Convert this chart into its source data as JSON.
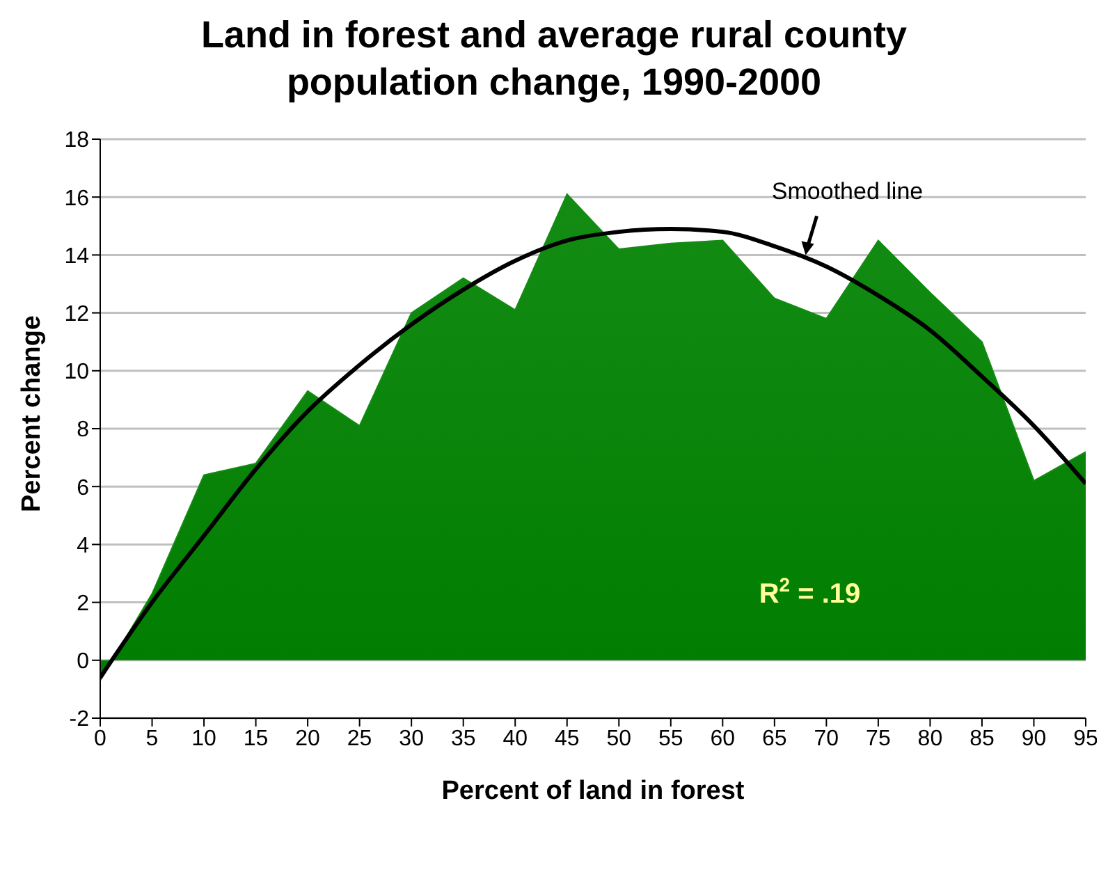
{
  "chart_data": {
    "type": "area",
    "title": "Land in forest and average rural county population change, 1990-2000",
    "xlabel": "Percent of land in forest",
    "ylabel": "Percent change",
    "x": [
      0,
      5,
      10,
      15,
      20,
      25,
      30,
      35,
      40,
      45,
      50,
      55,
      60,
      65,
      70,
      75,
      80,
      85,
      90,
      95
    ],
    "series": [
      {
        "color": "#148c14",
        "values": [
          -0.7,
          2.3,
          6.4,
          6.8,
          9.3,
          8.1,
          12.0,
          13.2,
          12.1,
          16.1,
          14.2,
          14.4,
          14.5,
          12.5,
          11.8,
          14.5,
          12.7,
          11.0,
          6.2,
          7.2
        ]
      },
      {
        "type": "line",
        "color": "#000000",
        "values": [
          -0.6,
          2.0,
          4.3,
          6.6,
          8.6,
          10.2,
          11.6,
          12.8,
          13.8,
          14.5,
          14.8,
          14.9,
          14.8,
          14.3,
          13.6,
          12.6,
          11.4,
          9.8,
          8.1,
          6.1
        ]
      }
    ],
    "xlim": [
      0,
      95
    ],
    "xticks": [
      0,
      5,
      10,
      15,
      20,
      25,
      30,
      35,
      40,
      45,
      50,
      55,
      60,
      65,
      70,
      75,
      80,
      85,
      90,
      95
    ],
    "ylim": [
      -2,
      18
    ],
    "yticks": [
      -2,
      0,
      2,
      4,
      6,
      8,
      10,
      12,
      14,
      16,
      18
    ],
    "grid": "y",
    "legend": false,
    "marker": "none",
    "line_style": "solid",
    "annotations": [
      {
        "text": "Smoothed line",
        "x": 68,
        "y": 14
      },
      "R$^{2}$ = .19"
    ]
  }
}
